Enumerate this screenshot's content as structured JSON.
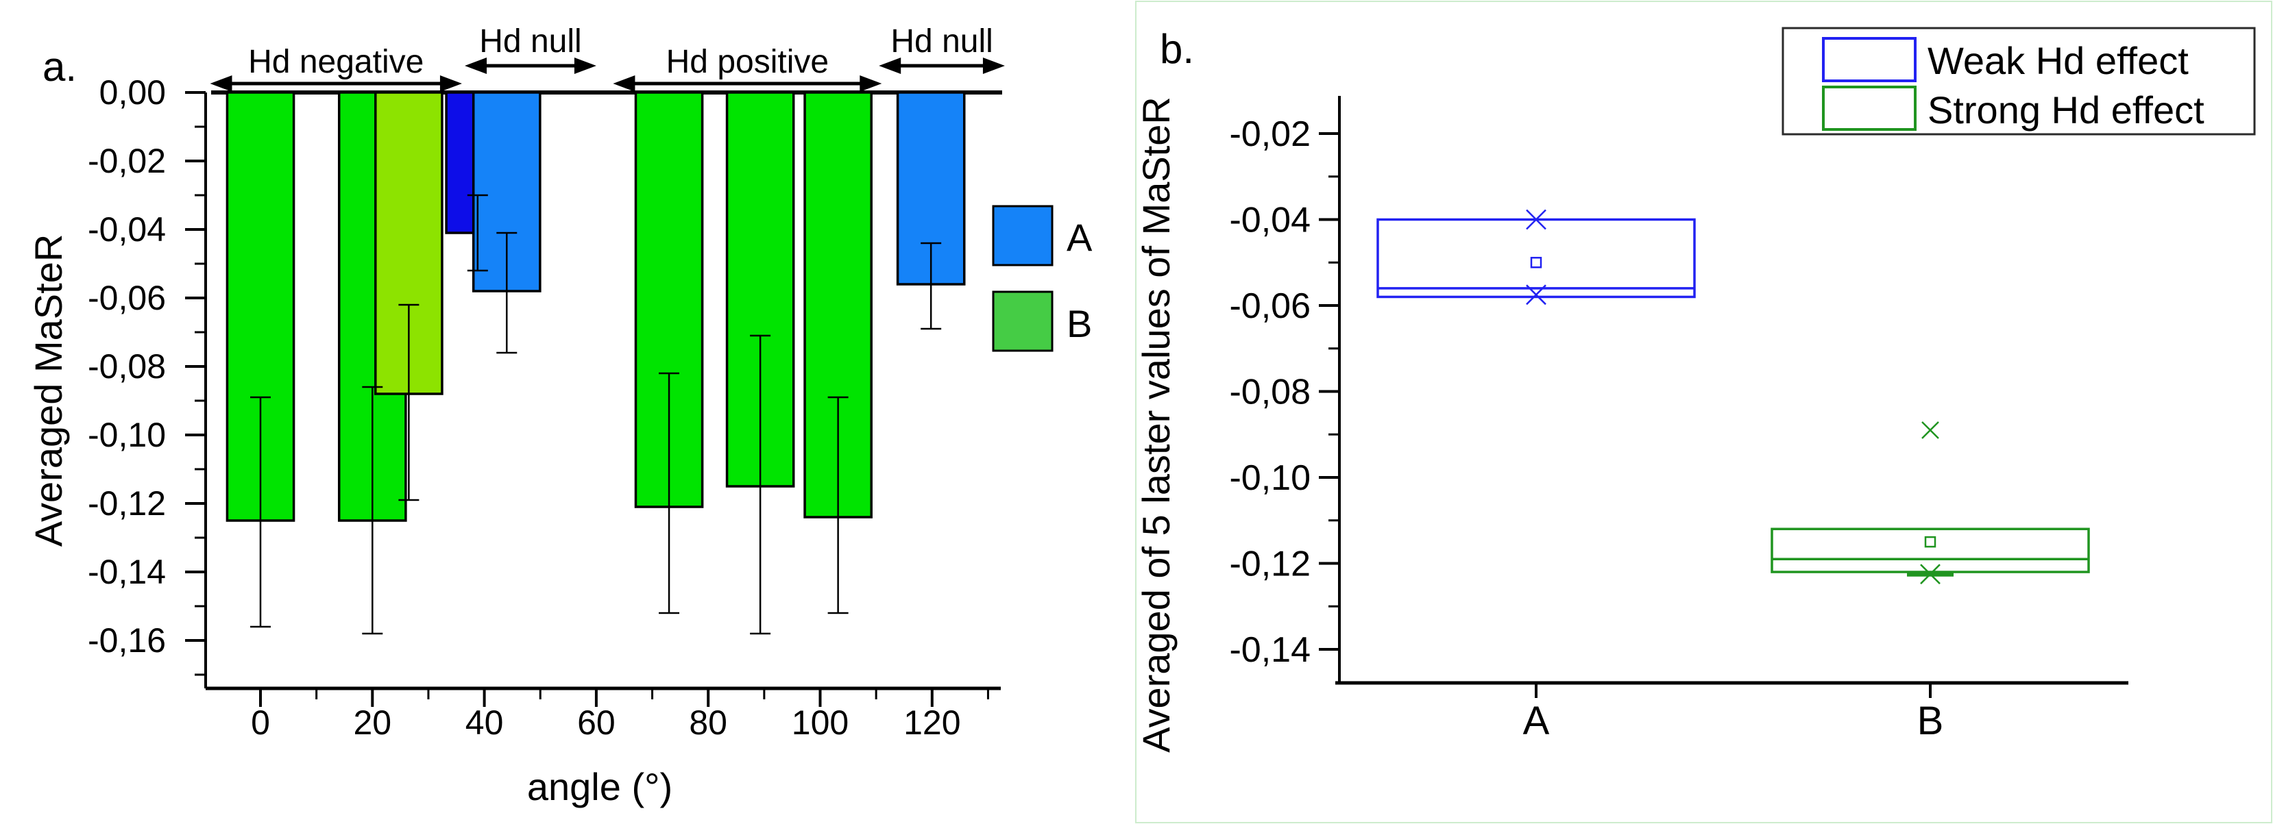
{
  "figure": {
    "background": "#ffffff",
    "panel_b_border_color": "#cdeccd"
  },
  "panel_a": {
    "label": "a.",
    "legend": [
      {
        "label": "A",
        "color": "#1583F8"
      },
      {
        "label": "B",
        "color": "#45CC45"
      }
    ]
  },
  "panel_b": {
    "label": "b."
  },
  "chart_data": [
    {
      "type": "bar",
      "title": "",
      "xlabel": "angle (°)",
      "ylabel": "Averaged MaSteR",
      "xlim": [
        -10,
        135
      ],
      "ylim": [
        -0.175,
        0.0
      ],
      "xticks": [
        0,
        20,
        40,
        60,
        80,
        100,
        120
      ],
      "xtick_labels": [
        "0",
        "20",
        "40",
        "60",
        "80",
        "100",
        "120"
      ],
      "yticks": [
        0.0,
        -0.02,
        -0.04,
        -0.06,
        -0.08,
        -0.1,
        -0.12,
        -0.14,
        -0.16
      ],
      "ytick_labels": [
        "0,00",
        "-0,02",
        "-0,04",
        "-0,06",
        "-0,08",
        "-0,10",
        "-0,12",
        "-0,14",
        "-0,16"
      ],
      "grid": false,
      "colors": {
        "green": "#00E400",
        "yellow_green": "#8DE300",
        "dark_blue": "#0D0DE8",
        "blue": "#1583F8"
      },
      "series": [
        {
          "name": "A",
          "color_key": "blue"
        },
        {
          "name": "B",
          "color_key": "green"
        }
      ],
      "bars": [
        {
          "angle": 0,
          "color": "green",
          "width_deg": 11.9,
          "value": -0.125,
          "err_top": -0.089,
          "err_bottom": -0.156
        },
        {
          "angle": 20,
          "color": "green",
          "width_deg": 11.9,
          "value": -0.125,
          "err_top": -0.086,
          "err_bottom": -0.158
        },
        {
          "angle": 26.5,
          "color": "yellow_green",
          "width_deg": 11.9,
          "value": -0.088,
          "err_top": -0.062,
          "err_bottom": -0.119
        },
        {
          "angle": 35.9,
          "color": "dark_blue",
          "width_deg": 5.4,
          "value": -0.041,
          "err_top": -0.03,
          "err_bottom": -0.052,
          "err_angle": 38.8
        },
        {
          "angle": 44,
          "color": "blue",
          "width_deg": 11.9,
          "value": -0.058,
          "err_top": -0.041,
          "err_bottom": -0.076
        },
        {
          "angle": 73,
          "color": "green",
          "width_deg": 11.9,
          "value": -0.121,
          "err_top": -0.082,
          "err_bottom": -0.152
        },
        {
          "angle": 89.3,
          "color": "green",
          "width_deg": 11.9,
          "value": -0.115,
          "err_top": -0.071,
          "err_bottom": -0.158
        },
        {
          "angle": 103.2,
          "color": "green",
          "width_deg": 11.9,
          "value": -0.124,
          "err_top": -0.089,
          "err_bottom": -0.152
        },
        {
          "angle": 119.8,
          "color": "blue",
          "width_deg": 11.9,
          "value": -0.056,
          "err_top": -0.044,
          "err_bottom": -0.069
        }
      ],
      "annotations": [
        {
          "label": "Hd negative",
          "deg_start": -9,
          "deg_end": 36,
          "row": "low"
        },
        {
          "label": "Hd null",
          "deg_start": 36.5,
          "deg_end": 60,
          "row": "high"
        },
        {
          "label": "Hd positive",
          "deg_start": 63,
          "deg_end": 111,
          "row": "low"
        },
        {
          "label": "Hd null",
          "deg_start": 110.5,
          "deg_end": 133,
          "row": "high"
        }
      ]
    },
    {
      "type": "box",
      "title": "",
      "xlabel": "",
      "ylabel": "Averaged of 5 laster values of MaSteR",
      "categories": [
        "A",
        "B"
      ],
      "yticks": [
        -0.02,
        -0.04,
        -0.06,
        -0.08,
        -0.1,
        -0.12,
        -0.14
      ],
      "ytick_labels": [
        "-0,02",
        "-0,04",
        "-0,06",
        "-0,08",
        "-0,10",
        "-0,12",
        "-0,14"
      ],
      "ylim": [
        -0.155,
        -0.008
      ],
      "grid": false,
      "legend": [
        {
          "label": "Weak Hd effect",
          "color": "#2222F2"
        },
        {
          "label": "Strong Hd effect",
          "color": "#209520"
        }
      ],
      "boxes": [
        {
          "category": "A",
          "color": "#2222F2",
          "q3": -0.04,
          "median": -0.056,
          "q1": -0.058,
          "mean": -0.05,
          "marker_max": -0.04,
          "marker_min": -0.0575,
          "outliers": []
        },
        {
          "category": "B",
          "color": "#209520",
          "q3": -0.112,
          "median": -0.119,
          "q1": -0.122,
          "mean": -0.115,
          "marker_min": -0.1225,
          "whisker_cap": -0.1225,
          "outliers": [
            -0.089
          ]
        }
      ]
    }
  ]
}
